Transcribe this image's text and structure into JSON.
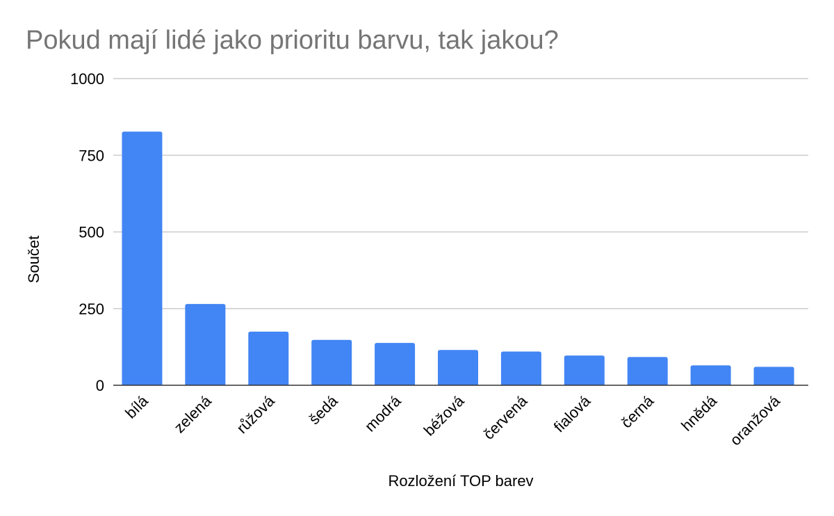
{
  "chart_data": {
    "type": "bar",
    "title": "Pokud mají lidé jako prioritu barvu, tak jakou?",
    "xlabel": "Rozložení TOP barev",
    "ylabel": "Součet",
    "categories": [
      "bílá",
      "zelená",
      "růžová",
      "šedá",
      "modrá",
      "béžová",
      "červená",
      "fialová",
      "černá",
      "hnědá",
      "oranžová"
    ],
    "series": [
      {
        "values": [
          827,
          265,
          175,
          148,
          138,
          115,
          110,
          97,
          92,
          65,
          60
        ]
      }
    ],
    "ylim": [
      0,
      1000
    ],
    "yticks": [
      "0",
      "250",
      "500",
      "750",
      "1000"
    ],
    "ytick_values": [
      0,
      250,
      500,
      750,
      1000
    ],
    "grid": true,
    "legend": "none",
    "bar_color": "#4285f4"
  }
}
